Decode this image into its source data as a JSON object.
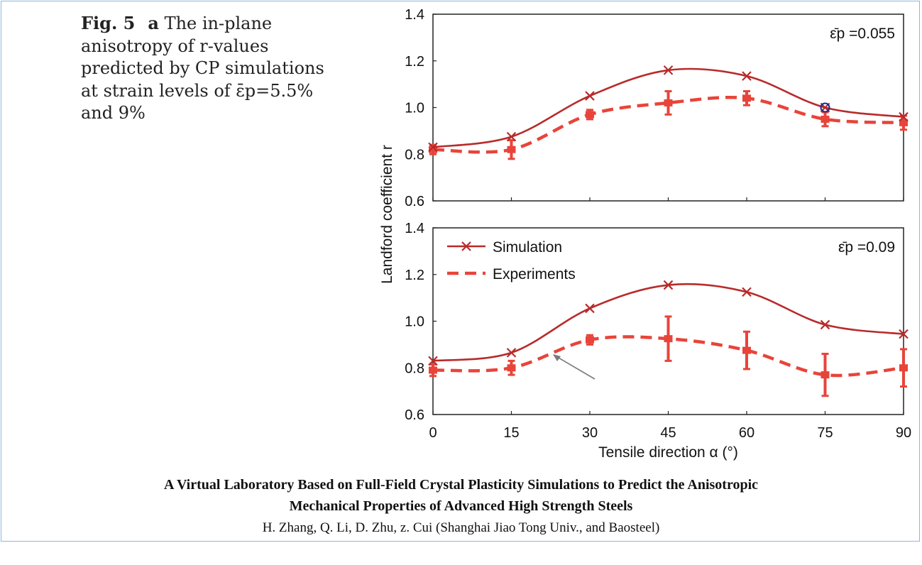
{
  "caption": {
    "fig": "Fig. 5",
    "panel": "a",
    "lines": [
      "The in-plane",
      "anisotropy of r-values",
      "predicted by CP simulations",
      "at strain levels of ε̄p=5.5%",
      "and 9%"
    ]
  },
  "footer": {
    "title_line1": "A Virtual Laboratory Based on Full-Field Crystal Plasticity Simulations to Predict the Anisotropic",
    "title_line2": "Mechanical Properties of Advanced High Strength Steels",
    "authors": "H. Zhang, Q. Li, D. Zhu, z. Cui (Shanghai Jiao Tong Univ., and Baosteel)"
  },
  "colors": {
    "simulation": "#b82b2b",
    "experiments": "#e8443a",
    "marker_circle": "#1f2b8c",
    "arrow": "#7a7a7a",
    "frame": "#8fb4e3"
  },
  "chart_data": [
    {
      "type": "line",
      "annotation": "ε̄p =0.055",
      "ylabel": "Landford coefficient r",
      "ylim": [
        0.6,
        1.4
      ],
      "yticks": [
        "0.6",
        "0.8",
        "1.0",
        "1.2",
        "1.4"
      ],
      "xlim": [
        0,
        90
      ],
      "x": [
        0,
        15,
        30,
        45,
        60,
        75,
        90
      ],
      "series": [
        {
          "name": "Simulation",
          "values": [
            0.83,
            0.875,
            1.05,
            1.16,
            1.135,
            1.0,
            0.96
          ]
        },
        {
          "name": "Experiments",
          "values": [
            0.82,
            0.82,
            0.97,
            1.02,
            1.04,
            0.95,
            0.935
          ],
          "errors": [
            0.02,
            0.04,
            0.02,
            0.05,
            0.03,
            0.03,
            0.03
          ]
        }
      ],
      "highlight_point": {
        "x": 75,
        "y": 1.0
      }
    },
    {
      "type": "line",
      "annotation": "ε̄p =0.09",
      "xlabel": "Tensile direction α (°)",
      "ylim": [
        0.6,
        1.4
      ],
      "yticks": [
        "0.6",
        "0.8",
        "1.0",
        "1.2",
        "1.4"
      ],
      "xlim": [
        0,
        90
      ],
      "xticks": [
        "0",
        "15",
        "30",
        "45",
        "60",
        "75",
        "90"
      ],
      "x": [
        0,
        15,
        30,
        45,
        60,
        75,
        90
      ],
      "legend": {
        "placement": "top-left"
      },
      "series": [
        {
          "name": "Simulation",
          "values": [
            0.83,
            0.865,
            1.055,
            1.155,
            1.125,
            0.985,
            0.945
          ]
        },
        {
          "name": "Experiments",
          "values": [
            0.79,
            0.8,
            0.92,
            0.925,
            0.875,
            0.77,
            0.8
          ],
          "errors": [
            0.025,
            0.03,
            0.02,
            0.095,
            0.08,
            0.09,
            0.08
          ]
        }
      ]
    }
  ]
}
